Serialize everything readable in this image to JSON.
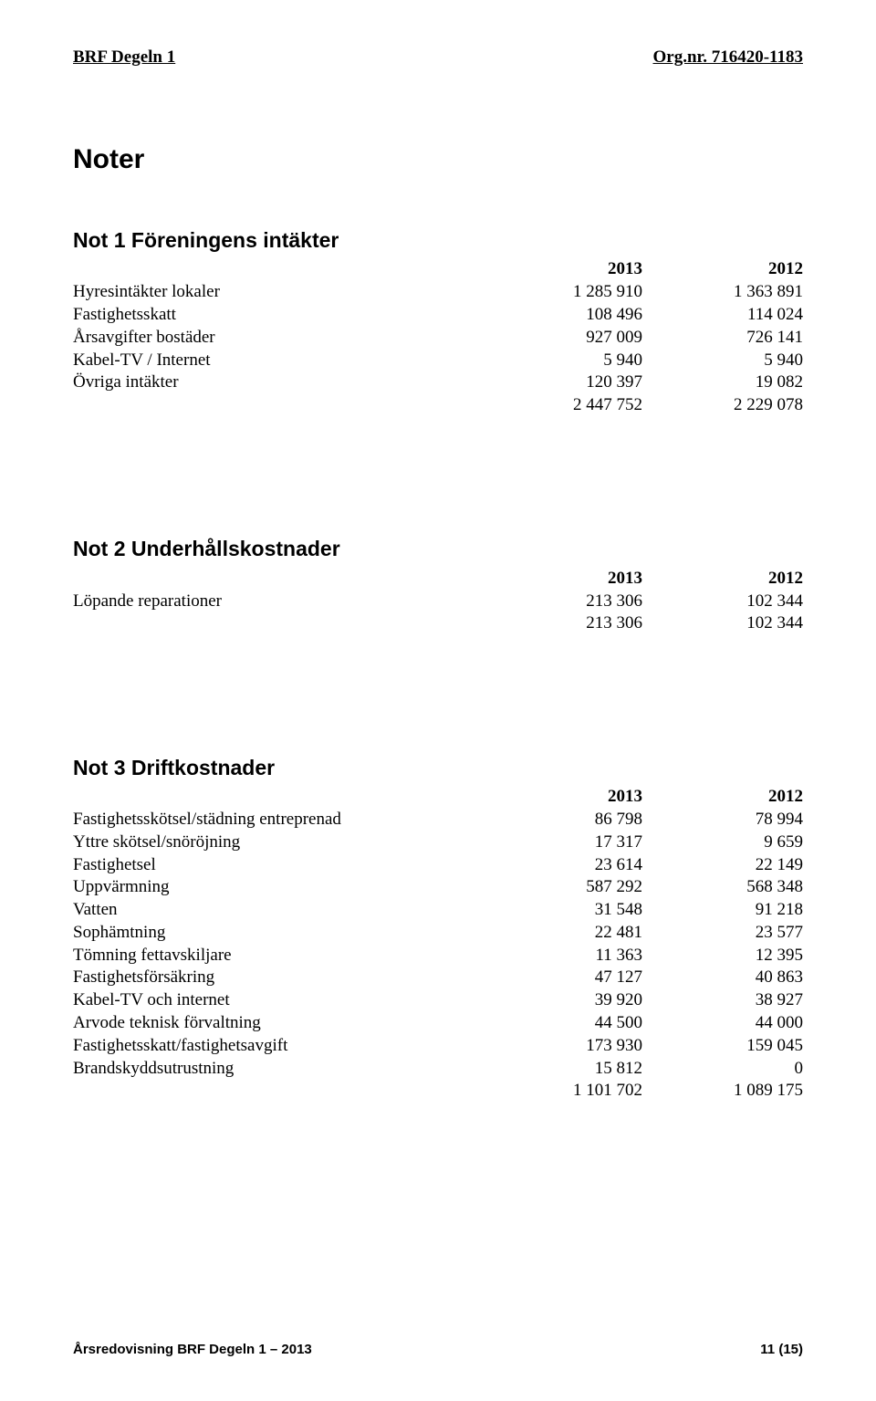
{
  "header": {
    "left": "BRF Degeln 1",
    "right": "Org.nr. 716420-1183"
  },
  "page_title": "Noter",
  "sections": [
    {
      "title": "Not 1 Föreningens intäkter",
      "col_headers": [
        "2013",
        "2012"
      ],
      "rows": [
        {
          "label": "Hyresintäkter lokaler",
          "c1": "1 285 910",
          "c2": "1 363 891"
        },
        {
          "label": "Fastighetsskatt",
          "c1": "108 496",
          "c2": "114 024"
        },
        {
          "label": "Årsavgifter bostäder",
          "c1": "927 009",
          "c2": "726 141"
        },
        {
          "label": "Kabel-TV / Internet",
          "c1": "5 940",
          "c2": "5 940"
        },
        {
          "label": "Övriga intäkter",
          "c1": "120 397",
          "c2": "19 082"
        }
      ],
      "total": {
        "label": "",
        "c1": "2 447 752",
        "c2": "2 229 078"
      }
    },
    {
      "title": "Not 2 Underhållskostnader",
      "col_headers": [
        "2013",
        "2012"
      ],
      "rows": [
        {
          "label": "Löpande reparationer",
          "c1": "213 306",
          "c2": "102 344"
        }
      ],
      "total": {
        "label": "",
        "c1": "213 306",
        "c2": "102 344"
      }
    },
    {
      "title": "Not 3 Driftkostnader",
      "col_headers": [
        "2013",
        "2012"
      ],
      "rows": [
        {
          "label": "Fastighetsskötsel/städning entreprenad",
          "c1": "86 798",
          "c2": "78 994"
        },
        {
          "label": "Yttre skötsel/snöröjning",
          "c1": "17 317",
          "c2": "9 659"
        },
        {
          "label": "Fastighetsel",
          "c1": "23 614",
          "c2": "22 149"
        },
        {
          "label": "Uppvärmning",
          "c1": "587 292",
          "c2": "568 348"
        },
        {
          "label": "Vatten",
          "c1": "31 548",
          "c2": "91 218"
        },
        {
          "label": "Sophämtning",
          "c1": "22 481",
          "c2": "23 577"
        },
        {
          "label": "Tömning fettavskiljare",
          "c1": "11 363",
          "c2": "12 395"
        },
        {
          "label": "Fastighetsförsäkring",
          "c1": "47 127",
          "c2": "40 863"
        },
        {
          "label": "Kabel-TV  och internet",
          "c1": "39 920",
          "c2": "38 927"
        },
        {
          "label": "Arvode teknisk förvaltning",
          "c1": "44 500",
          "c2": "44 000"
        },
        {
          "label": "Fastighetsskatt/fastighetsavgift",
          "c1": "173 930",
          "c2": "159 045"
        },
        {
          "label": "Brandskyddsutrustning",
          "c1": "15 812",
          "c2": "0"
        }
      ],
      "total": {
        "label": "",
        "c1": "1 101 702",
        "c2": "1 089 175"
      }
    }
  ],
  "footer": {
    "left": "Årsredovisning BRF Degeln 1 – 2013",
    "right": "11 (15)"
  }
}
